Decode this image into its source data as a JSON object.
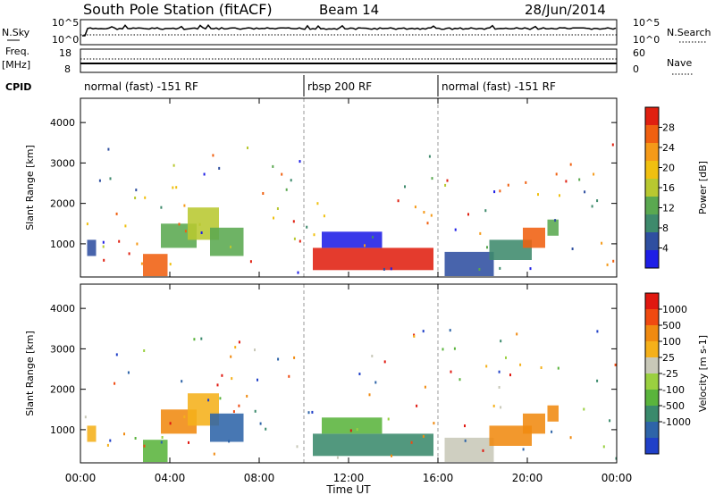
{
  "header": {
    "station": "South Pole Station (fitACF)",
    "beam": "Beam 14",
    "date": "28/Jun/2014"
  },
  "sky_panel": {
    "left_label": "N.Sky",
    "right_label": "N.Search",
    "left_ticks": [
      "10^5",
      "10^0"
    ],
    "right_ticks": [
      "10^5",
      "10^0"
    ]
  },
  "freq_panel": {
    "left_label_top": "Freq.",
    "left_label_bottom": "[MHz]",
    "right_label": "Nave",
    "left_ticks": [
      "18",
      "8"
    ],
    "right_ticks": [
      "60",
      "0"
    ]
  },
  "cpid": {
    "label": "CPID",
    "segments": [
      {
        "label": "normal (fast) -151 RF",
        "start_hour": 0,
        "end_hour": 10
      },
      {
        "label": "rbsp 200 RF",
        "start_hour": 10,
        "end_hour": 16
      },
      {
        "label": "normal (fast) -151 RF",
        "start_hour": 16,
        "end_hour": 24
      }
    ]
  },
  "x_axis": {
    "label": "Time UT",
    "range_hours": [
      0,
      24
    ],
    "tick_hours": [
      0,
      4,
      8,
      12,
      16,
      20,
      24
    ],
    "tick_labels": [
      "00:00",
      "04:00",
      "08:00",
      "12:00",
      "16:00",
      "20:00",
      "00:00"
    ]
  },
  "chart_data": [
    {
      "type": "heatmap",
      "ylabel": "Slant Range [km]",
      "ylim": [
        180,
        4600
      ],
      "yticks": [
        1000,
        2000,
        3000,
        4000
      ],
      "colorbar_label": "Power [dB]",
      "colorbar_ticks": [
        "4",
        "8",
        "12",
        "16",
        "20",
        "24",
        "28"
      ],
      "colors": [
        "#1e1ee6",
        "#2f4fa0",
        "#3e8a6c",
        "#5aa850",
        "#b8c830",
        "#f0c010",
        "#f59a18",
        "#f06010",
        "#e02010"
      ],
      "regions": [
        {
          "t0": 0.3,
          "t1": 0.7,
          "r0": 700,
          "r1": 1100,
          "level": 1
        },
        {
          "t0": 2.8,
          "t1": 3.9,
          "r0": 200,
          "r1": 750,
          "level": 7
        },
        {
          "t0": 3.6,
          "t1": 5.2,
          "r0": 900,
          "r1": 1500,
          "level": 3
        },
        {
          "t0": 4.8,
          "t1": 6.2,
          "r0": 1100,
          "r1": 1900,
          "level": 4
        },
        {
          "t0": 5.8,
          "t1": 7.3,
          "r0": 700,
          "r1": 1400,
          "level": 3
        },
        {
          "t0": 10.4,
          "t1": 15.8,
          "r0": 350,
          "r1": 900,
          "level": 8
        },
        {
          "t0": 10.8,
          "t1": 13.5,
          "r0": 900,
          "r1": 1300,
          "level": 0
        },
        {
          "t0": 16.3,
          "t1": 18.5,
          "r0": 200,
          "r1": 800,
          "level": 1
        },
        {
          "t0": 18.3,
          "t1": 20.2,
          "r0": 600,
          "r1": 1100,
          "level": 2
        },
        {
          "t0": 19.8,
          "t1": 20.8,
          "r0": 900,
          "r1": 1400,
          "level": 7
        },
        {
          "t0": 20.9,
          "t1": 21.4,
          "r0": 1200,
          "r1": 1600,
          "level": 3
        }
      ]
    },
    {
      "type": "heatmap",
      "ylabel": "Slant Range [km]",
      "ylim": [
        180,
        4600
      ],
      "yticks": [
        1000,
        2000,
        3000,
        4000
      ],
      "colorbar_label": "Velocity [m s-1]",
      "colorbar_ticks": [
        "1000",
        "500",
        "100",
        "25",
        "-25",
        "-100",
        "-500",
        "-1000"
      ],
      "colors": [
        "#2040c8",
        "#2e64a8",
        "#3a8a6c",
        "#5ab43c",
        "#9ad040",
        "#c8c8b8",
        "#f5b01a",
        "#f08a10",
        "#f04a10",
        "#e01810"
      ],
      "regions": [
        {
          "t0": 0.3,
          "t1": 0.7,
          "r0": 700,
          "r1": 1100,
          "level": 6
        },
        {
          "t0": 2.8,
          "t1": 3.9,
          "r0": 200,
          "r1": 750,
          "level": 3
        },
        {
          "t0": 3.6,
          "t1": 5.2,
          "r0": 900,
          "r1": 1500,
          "level": 7
        },
        {
          "t0": 4.8,
          "t1": 6.2,
          "r0": 1100,
          "r1": 1900,
          "level": 6
        },
        {
          "t0": 5.8,
          "t1": 7.3,
          "r0": 700,
          "r1": 1400,
          "level": 1
        },
        {
          "t0": 10.4,
          "t1": 15.8,
          "r0": 350,
          "r1": 900,
          "level": 2
        },
        {
          "t0": 10.8,
          "t1": 13.5,
          "r0": 900,
          "r1": 1300,
          "level": 3
        },
        {
          "t0": 16.3,
          "t1": 18.5,
          "r0": 200,
          "r1": 800,
          "level": 5
        },
        {
          "t0": 18.3,
          "t1": 20.2,
          "r0": 600,
          "r1": 1100,
          "level": 7
        },
        {
          "t0": 19.8,
          "t1": 20.8,
          "r0": 900,
          "r1": 1400,
          "level": 7
        },
        {
          "t0": 20.9,
          "t1": 21.4,
          "r0": 1200,
          "r1": 1600,
          "level": 7
        }
      ]
    }
  ]
}
